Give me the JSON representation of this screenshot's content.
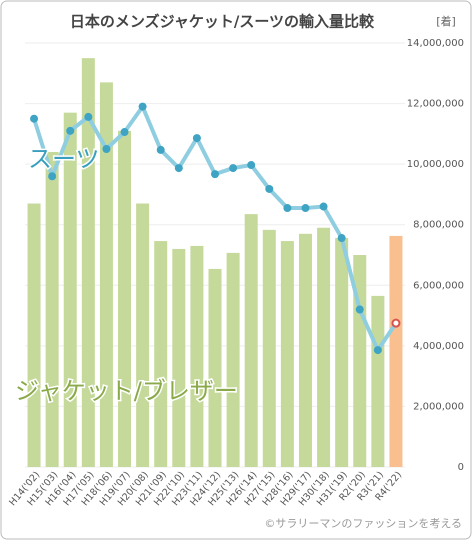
{
  "chart_data": {
    "type": "bar_line",
    "title": "日本のメンズジャケット/スーツの輸入量比較",
    "unit_label": "[着]",
    "credit": "©サラリーマンのファッションを考える",
    "categories": [
      "H14('02)",
      "H15('03)",
      "H16('04)",
      "H17('05)",
      "H18('06)",
      "H19('07)",
      "H20('08)",
      "H21('09)",
      "H22('10)",
      "H23('11)",
      "H24('12)",
      "H25('13)",
      "H26('14)",
      "H27('15)",
      "H28('16)",
      "H29('17)",
      "H30('18)",
      "H31('19)",
      "R2('20)",
      "R3('21)",
      "R4('22)"
    ],
    "series": [
      {
        "name": "ジャケット/ブレザー",
        "type": "bar",
        "color": "#c5d99a",
        "label_color": "#8aaa4a",
        "colors": [
          "#c5d99a",
          "#c5d99a",
          "#c5d99a",
          "#c5d99a",
          "#c5d99a",
          "#c5d99a",
          "#c5d99a",
          "#c5d99a",
          "#c5d99a",
          "#c5d99a",
          "#c5d99a",
          "#c5d99a",
          "#c5d99a",
          "#c5d99a",
          "#c5d99a",
          "#c5d99a",
          "#c5d99a",
          "#c5d99a",
          "#c5d99a",
          "#c5d99a",
          "#f9bf8f"
        ],
        "values": [
          8700000,
          10400000,
          11700000,
          13500000,
          12700000,
          11100000,
          8700000,
          7460000,
          7200000,
          7300000,
          6540000,
          7070000,
          8350000,
          7830000,
          7460000,
          7700000,
          7900000,
          7560000,
          7000000,
          5650000,
          7630000
        ]
      },
      {
        "name": "スーツ",
        "type": "line",
        "color": "#8fcde0",
        "marker_color": "#3fa3c4",
        "label_color": "#3a9fbf",
        "marker_colors": [
          "#3fa3c4",
          "#3fa3c4",
          "#3fa3c4",
          "#3fa3c4",
          "#3fa3c4",
          "#3fa3c4",
          "#3fa3c4",
          "#3fa3c4",
          "#3fa3c4",
          "#3fa3c4",
          "#3fa3c4",
          "#3fa3c4",
          "#3fa3c4",
          "#3fa3c4",
          "#3fa3c4",
          "#3fa3c4",
          "#3fa3c4",
          "#3fa3c4",
          "#3fa3c4",
          "#3fa3c4",
          "#d9534f"
        ],
        "values": [
          11500000,
          9600000,
          11100000,
          11560000,
          10500000,
          11060000,
          11900000,
          10470000,
          9870000,
          10860000,
          9670000,
          9870000,
          9970000,
          9180000,
          8550000,
          8550000,
          8600000,
          7560000,
          5200000,
          3860000,
          4750000
        ]
      }
    ],
    "ylim": [
      0,
      14000000
    ],
    "yticks": [
      0,
      {
        "value": 2000000,
        "label": "2,000,000"
      },
      {
        "value": 4000000,
        "label": "4,000,000"
      },
      {
        "value": 6000000,
        "label": "6,000,000"
      },
      {
        "value": 8000000,
        "label": "8,000,000"
      },
      {
        "value": 10000000,
        "label": "10,000,000"
      },
      {
        "value": 12000000,
        "label": "12,000,000"
      },
      {
        "value": 14000000,
        "label": "14,000,000"
      }
    ],
    "grid": true
  }
}
